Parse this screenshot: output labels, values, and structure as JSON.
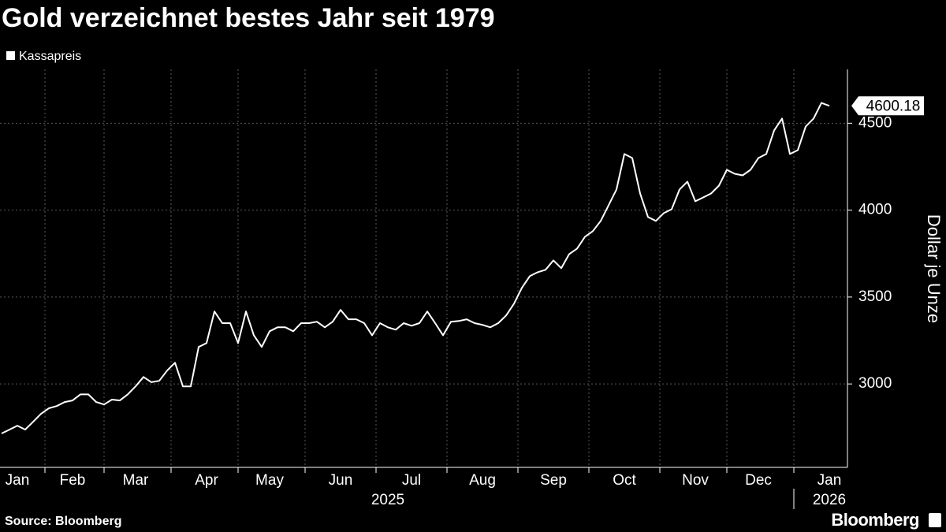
{
  "chart_data": {
    "type": "line",
    "title": "Gold verzeichnet bestes Jahr seit 1979",
    "y_label": "Dollar je Unze",
    "source": "Source: Bloomberg",
    "brand": "Bloomberg",
    "categories": [
      null,
      null,
      "Jan",
      null,
      null,
      null,
      null,
      null,
      null,
      "Feb",
      null,
      null,
      null,
      null,
      null,
      null,
      null,
      "Mar",
      null,
      null,
      null,
      null,
      null,
      null,
      null,
      null,
      "Apr",
      null,
      null,
      null,
      null,
      null,
      null,
      null,
      "May",
      null,
      null,
      null,
      null,
      null,
      null,
      null,
      null,
      "Jun",
      null,
      null,
      null,
      null,
      null,
      null,
      null,
      null,
      "Jul",
      null,
      null,
      null,
      null,
      null,
      null,
      null,
      null,
      "Aug",
      null,
      null,
      null,
      null,
      null,
      null,
      null,
      null,
      "Sep",
      null,
      null,
      null,
      null,
      null,
      null,
      null,
      null,
      "Oct",
      null,
      null,
      null,
      null,
      null,
      null,
      null,
      null,
      "Nov",
      null,
      null,
      null,
      null,
      null,
      null,
      null,
      "Dec",
      null,
      null,
      null,
      null,
      null,
      null,
      null,
      null,
      "Jan"
    ],
    "x_groups": [
      {
        "label": "2025",
        "span": 12
      },
      {
        "label": "2026",
        "span": 1
      }
    ],
    "series": [
      {
        "name": "Kassapreis",
        "color": "#ffffff",
        "values": [
          2715,
          2737,
          2760,
          2737,
          2782,
          2828,
          2860,
          2873,
          2896,
          2905,
          2940,
          2940,
          2896,
          2882,
          2910,
          2905,
          2940,
          2986,
          3040,
          3010,
          3018,
          3077,
          3122,
          2986,
          2986,
          3213,
          3235,
          3417,
          3350,
          3350,
          3235,
          3417,
          3280,
          3213,
          3303,
          3326,
          3326,
          3303,
          3350,
          3350,
          3358,
          3326,
          3358,
          3426,
          3372,
          3372,
          3350,
          3280,
          3350,
          3326,
          3312,
          3350,
          3335,
          3350,
          3417,
          3350,
          3280,
          3358,
          3362,
          3372,
          3350,
          3340,
          3326,
          3350,
          3394,
          3462,
          3553,
          3620,
          3643,
          3657,
          3711,
          3666,
          3747,
          3779,
          3847,
          3879,
          3938,
          4028,
          4119,
          4323,
          4300,
          4096,
          3960,
          3938,
          3983,
          4005,
          4119,
          4164,
          4051,
          4073,
          4096,
          4141,
          4232,
          4209,
          4200,
          4232,
          4300,
          4323,
          4459,
          4527,
          4323,
          4345,
          4481,
          4527,
          4617,
          4600.18
        ]
      }
    ],
    "ylim": [
      2520,
      4810
    ],
    "yticks": [
      3000,
      3500,
      4000,
      4500
    ],
    "grid": true,
    "y_axis_side": "right",
    "last_value_label": true
  }
}
